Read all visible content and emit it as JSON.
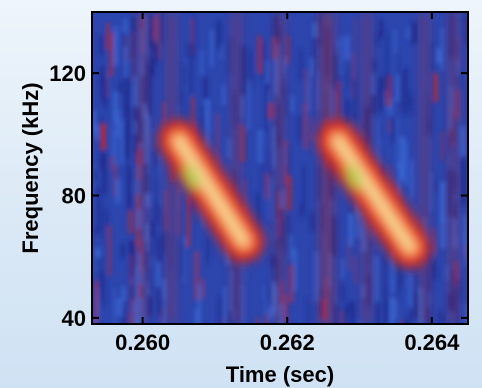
{
  "chart_data": {
    "type": "heatmap",
    "title": "",
    "xlabel": "Time (sec)",
    "ylabel": "Frequency (kHz)",
    "xlim": [
      0.2593,
      0.2645
    ],
    "ylim": [
      38,
      140
    ],
    "x_ticks": [
      {
        "value": 0.26,
        "label": "0.260"
      },
      {
        "value": 0.262,
        "label": "0.262"
      },
      {
        "value": 0.264,
        "label": "0.264"
      }
    ],
    "y_ticks": [
      {
        "value": 40,
        "label": "40"
      },
      {
        "value": 80,
        "label": "80"
      },
      {
        "value": 120,
        "label": "120"
      }
    ],
    "colormap": [
      "#1d2a8c",
      "#2f4fbf",
      "#3c66d2",
      "#7a3a7a",
      "#c0282a",
      "#e8341f",
      "#f5652a",
      "#fbb07a",
      "#f4d890",
      "#b9c84a"
    ],
    "background_color": "#2c46ae",
    "features": [
      {
        "label": "chirp",
        "t_start": 0.2605,
        "f_start": 98,
        "t_end": 0.2614,
        "f_end": 65,
        "peak_time": 0.26068,
        "peak_freq": 86
      },
      {
        "label": "chirp",
        "t_start": 0.2627,
        "f_start": 98,
        "t_end": 0.2637,
        "f_end": 63,
        "peak_time": 0.26292,
        "peak_freq": 86
      }
    ]
  }
}
